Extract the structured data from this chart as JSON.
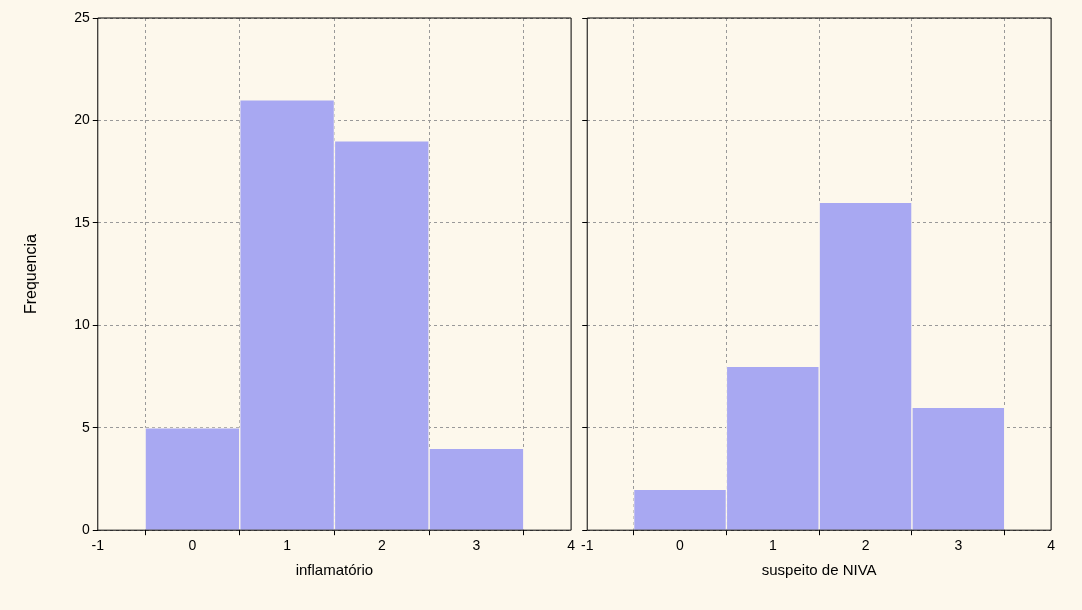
{
  "chart_data": [
    {
      "type": "histogram",
      "bins": [
        -0.5,
        0.5,
        1.5,
        2.5,
        3.5
      ],
      "values": [
        5,
        21,
        19,
        4
      ],
      "color": "#a8a8f2",
      "xlabel": "inflamatório",
      "ylabel": "Frequencia",
      "xlim": [
        -1,
        4
      ],
      "xticks": [
        -1,
        0,
        1,
        2,
        3,
        4
      ],
      "ylim": [
        0,
        25
      ],
      "yticks": [
        0,
        5,
        10,
        15,
        20,
        25
      ],
      "grid": true
    },
    {
      "type": "histogram",
      "bins": [
        -0.5,
        0.5,
        1.5,
        2.5,
        3.5
      ],
      "values": [
        2,
        8,
        16,
        6
      ],
      "color": "#a8a8f2",
      "xlabel": "suspeito de NIVA",
      "xlim": [
        -1,
        4
      ],
      "xticks": [
        -1,
        0,
        1,
        2,
        3,
        4
      ],
      "ylim": [
        0,
        25
      ],
      "yticks": [
        0,
        5,
        10,
        15,
        20,
        25
      ],
      "grid": true,
      "tick_labels": "x"
    }
  ]
}
